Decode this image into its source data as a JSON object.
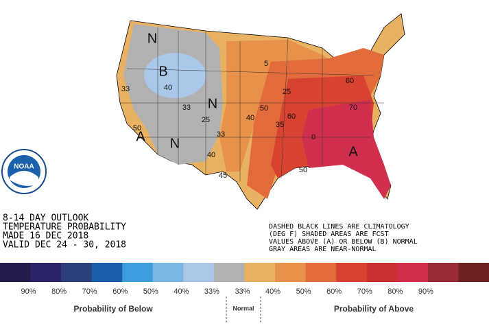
{
  "outlook": {
    "lines": [
      "8-14 DAY OUTLOOK",
      "TEMPERATURE PROBABILITY",
      "MADE  16 DEC 2018",
      "VALID  DEC 24 - 30, 2018"
    ],
    "notes": [
      "DASHED BLACK LINES ARE CLIMATOLOGY",
      "(DEG F) SHADED AREAS ARE FCST",
      "VALUES ABOVE (A) OR BELOW (B) NORMAL",
      "GRAY AREAS ARE NEAR-NORMAL"
    ],
    "logo": "NOAA"
  },
  "map": {
    "labels": [
      "N",
      "B",
      "40",
      "33",
      "N",
      "N",
      "A",
      "33",
      "33",
      "40",
      "45",
      "50",
      "40",
      "25",
      "35",
      "60",
      "60",
      "70",
      "0",
      "50",
      "A",
      "25",
      "50",
      "5"
    ]
  },
  "legend": {
    "colors": [
      "#221c4e",
      "#2b2468",
      "#2c3f7c",
      "#1a60aa",
      "#3c9cdc",
      "#7cb6e2",
      "#a9c8ea",
      "#b1b1b1",
      "#e9b263",
      "#e8914a",
      "#e26b3b",
      "#d84331",
      "#c8312f",
      "#cf2f4c",
      "#9c2a36",
      "#6f2023"
    ],
    "labels": [
      "90%",
      "80%",
      "70%",
      "60%",
      "50%",
      "40%",
      "33%",
      "33%",
      "40%",
      "50%",
      "60%",
      "70%",
      "80%",
      "90%"
    ],
    "below": "Probability of Below",
    "normal": "Normal",
    "above": "Probability of Above"
  }
}
